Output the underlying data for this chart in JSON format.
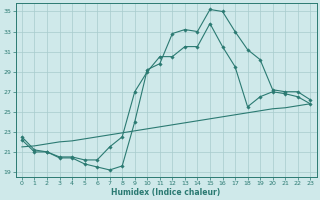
{
  "xlabel": "Humidex (Indice chaleur)",
  "xlim": [
    -0.5,
    23.5
  ],
  "ylim": [
    18.5,
    35.8
  ],
  "xticks": [
    0,
    1,
    2,
    3,
    4,
    5,
    6,
    7,
    8,
    9,
    10,
    11,
    12,
    13,
    14,
    15,
    16,
    17,
    18,
    19,
    20,
    21,
    22,
    23
  ],
  "yticks": [
    19,
    21,
    23,
    25,
    27,
    29,
    31,
    33,
    35
  ],
  "bg_color": "#cfe9ea",
  "grid_color": "#a8cccd",
  "line_color": "#2b7a72",
  "line1_x": [
    0,
    1,
    2,
    3,
    4,
    5,
    6,
    7,
    8,
    9,
    10,
    11,
    12,
    13,
    14,
    15,
    16,
    17,
    18,
    19,
    20,
    21,
    22,
    23
  ],
  "line1_y": [
    22.5,
    21.2,
    21.0,
    20.4,
    20.4,
    19.8,
    19.5,
    19.2,
    19.6,
    24.0,
    29.2,
    29.8,
    32.8,
    33.2,
    33.0,
    35.2,
    35.0,
    33.0,
    31.2,
    30.2,
    27.2,
    27.0,
    27.0,
    26.2
  ],
  "line2_x": [
    0,
    1,
    2,
    3,
    4,
    5,
    6,
    7,
    8,
    9,
    10,
    11,
    12,
    13,
    14,
    15,
    16,
    17,
    18,
    19,
    20,
    21,
    22,
    23
  ],
  "line2_y": [
    22.2,
    21.0,
    21.0,
    20.5,
    20.5,
    20.2,
    20.2,
    21.5,
    22.5,
    27.0,
    29.0,
    30.5,
    30.5,
    31.5,
    31.5,
    33.8,
    31.5,
    29.5,
    25.5,
    26.5,
    27.0,
    26.8,
    26.5,
    25.8
  ],
  "line3_x": [
    0,
    1,
    2,
    3,
    4,
    5,
    6,
    7,
    8,
    9,
    10,
    11,
    12,
    13,
    14,
    15,
    16,
    17,
    18,
    19,
    20,
    21,
    22,
    23
  ],
  "line3_y": [
    21.5,
    21.6,
    21.8,
    22.0,
    22.1,
    22.3,
    22.5,
    22.7,
    22.9,
    23.1,
    23.3,
    23.5,
    23.7,
    23.9,
    24.1,
    24.3,
    24.5,
    24.7,
    24.9,
    25.1,
    25.3,
    25.4,
    25.6,
    25.8
  ]
}
